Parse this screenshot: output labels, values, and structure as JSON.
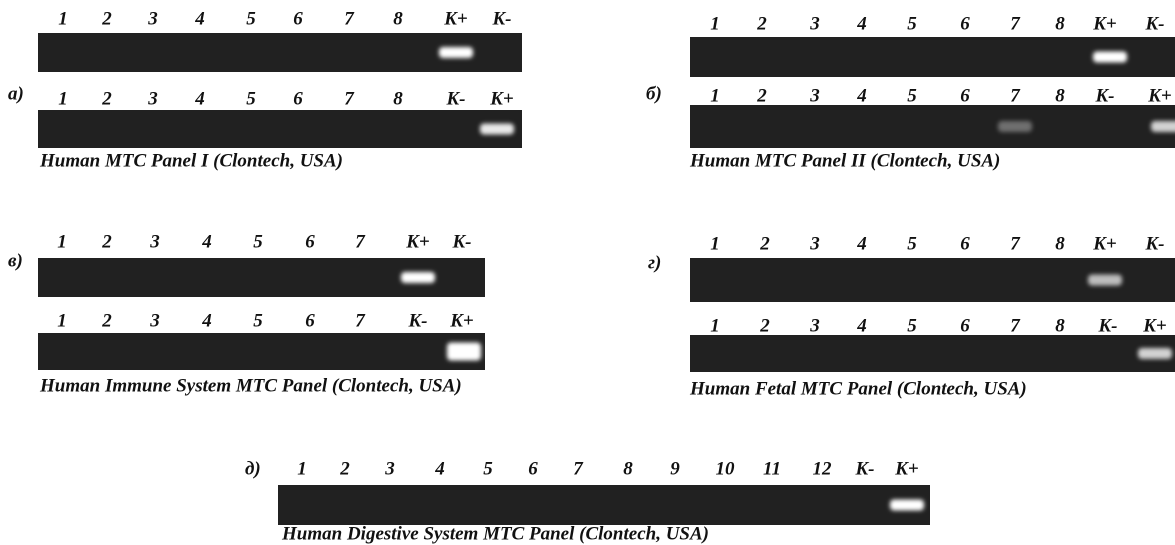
{
  "panels": [
    {
      "label": "а)",
      "rows": [
        {
          "lanes": [
            "1",
            "2",
            "3",
            "4",
            "5",
            "6",
            "7",
            "8",
            "K+",
            "K-"
          ]
        },
        {
          "lanes": [
            "1",
            "2",
            "3",
            "4",
            "5",
            "6",
            "7",
            "8",
            "K-",
            "K+"
          ]
        }
      ],
      "caption": "Human MTC Panel I (Clontech, USA)"
    },
    {
      "label": "б)",
      "rows": [
        {
          "lanes": [
            "1",
            "2",
            "3",
            "4",
            "5",
            "6",
            "7",
            "8",
            "K+",
            "K-"
          ]
        },
        {
          "lanes": [
            "1",
            "2",
            "3",
            "4",
            "5",
            "6",
            "7",
            "8",
            "K-",
            "K+"
          ]
        }
      ],
      "caption": "Human MTC Panel II (Clontech, USA)"
    },
    {
      "label": "в)",
      "rows": [
        {
          "lanes": [
            "1",
            "2",
            "3",
            "4",
            "5",
            "6",
            "7",
            "K+",
            "K-"
          ]
        },
        {
          "lanes": [
            "1",
            "2",
            "3",
            "4",
            "5",
            "6",
            "7",
            "K-",
            "K+"
          ]
        }
      ],
      "caption": "Human Immune System MTC Panel (Clontech, USA)"
    },
    {
      "label": "г)",
      "rows": [
        {
          "lanes": [
            "1",
            "2",
            "3",
            "4",
            "5",
            "6",
            "7",
            "8",
            "K+",
            "K-"
          ]
        },
        {
          "lanes": [
            "1",
            "2",
            "3",
            "4",
            "5",
            "6",
            "7",
            "8",
            "K-",
            "K+"
          ]
        }
      ],
      "caption": "Human Fetal MTC Panel (Clontech, USA)"
    },
    {
      "label": "д)",
      "rows": [
        {
          "lanes": [
            "1",
            "2",
            "3",
            "4",
            "5",
            "6",
            "7",
            "8",
            "9",
            "10",
            "11",
            "12",
            "K-",
            "K+"
          ]
        }
      ],
      "caption": "Human Digestive System MTC Panel (Clontech, USA)"
    }
  ]
}
